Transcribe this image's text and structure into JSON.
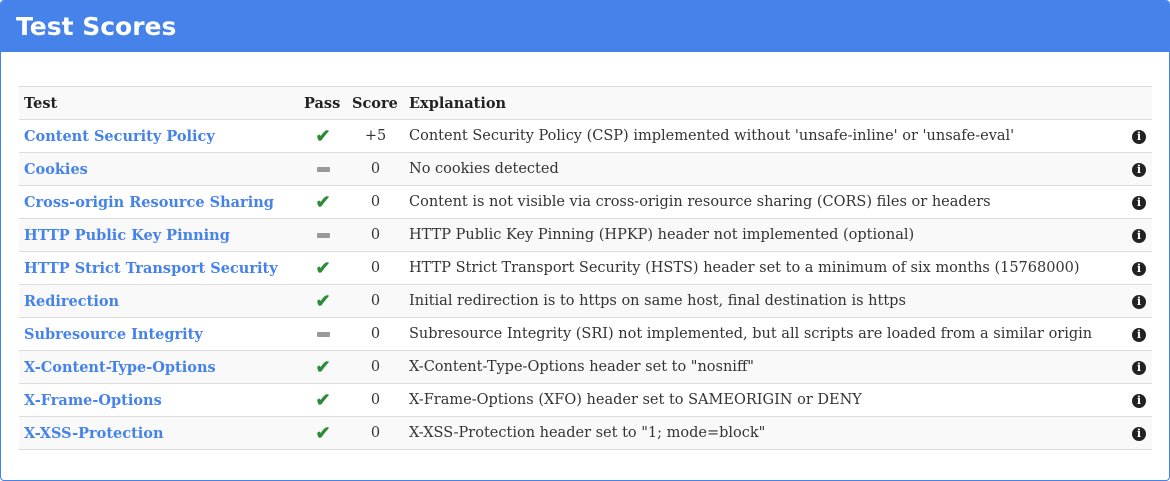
{
  "title": "Test Scores",
  "columns": [
    "Test",
    "Pass",
    "Score",
    "Explanation"
  ],
  "colors": {
    "accent": "#4582ea",
    "pass": "#2e8b3a",
    "neutral": "#999999"
  },
  "rows": [
    {
      "test": "Content Security Policy",
      "pass": "check",
      "score": "+5",
      "explanation": "Content Security Policy (CSP) implemented without 'unsafe-inline' or 'unsafe-eval'"
    },
    {
      "test": "Cookies",
      "pass": "dash",
      "score": "0",
      "explanation": "No cookies detected"
    },
    {
      "test": "Cross-origin Resource Sharing",
      "pass": "check",
      "score": "0",
      "explanation": "Content is not visible via cross-origin resource sharing (CORS) files or headers"
    },
    {
      "test": "HTTP Public Key Pinning",
      "pass": "dash",
      "score": "0",
      "explanation": "HTTP Public Key Pinning (HPKP) header not implemented (optional)"
    },
    {
      "test": "HTTP Strict Transport Security",
      "pass": "check",
      "score": "0",
      "explanation": "HTTP Strict Transport Security (HSTS) header set to a minimum of six months (15768000)"
    },
    {
      "test": "Redirection",
      "pass": "check",
      "score": "0",
      "explanation": "Initial redirection is to https on same host, final destination is https"
    },
    {
      "test": "Subresource Integrity",
      "pass": "dash",
      "score": "0",
      "explanation": "Subresource Integrity (SRI) not implemented, but all scripts are loaded from a similar origin"
    },
    {
      "test": "X-Content-Type-Options",
      "pass": "check",
      "score": "0",
      "explanation": "X-Content-Type-Options header set to \"nosniff\""
    },
    {
      "test": "X-Frame-Options",
      "pass": "check",
      "score": "0",
      "explanation": "X-Frame-Options (XFO) header set to SAMEORIGIN or DENY"
    },
    {
      "test": "X-XSS-Protection",
      "pass": "check",
      "score": "0",
      "explanation": "X-XSS-Protection header set to \"1; mode=block\""
    }
  ]
}
